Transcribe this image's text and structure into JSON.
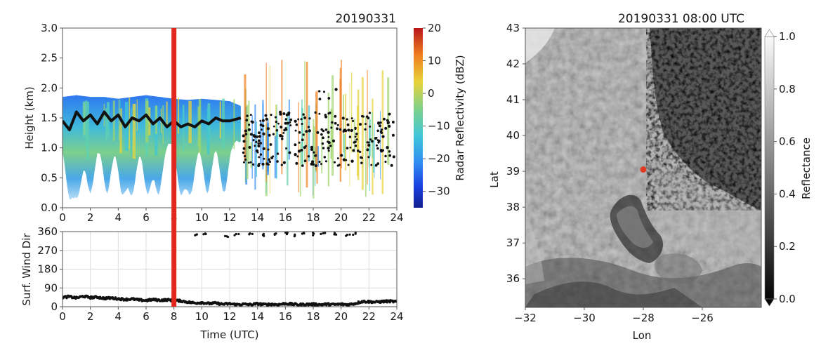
{
  "chart_data": [
    {
      "panel": "radar",
      "type": "heatmap",
      "title": "20190331",
      "xlabel": "",
      "ylabel": "Height (km)",
      "xlim": [
        0,
        24
      ],
      "ylim": [
        0.0,
        3.0
      ],
      "xticks": [
        "0",
        "2",
        "4",
        "6",
        "8",
        "10",
        "12",
        "14",
        "16",
        "18",
        "20",
        "22",
        "24"
      ],
      "yticks": [
        "0.0",
        "0.5",
        "1.0",
        "1.5",
        "2.0",
        "2.5",
        "3.0"
      ],
      "colorbar": {
        "label": "Radar Reflectivity (dBZ)",
        "range": [
          -35,
          20
        ],
        "ticks": [
          "20",
          "10",
          "0",
          "−10",
          "−20",
          "−30"
        ],
        "tick_values": [
          20,
          10,
          0,
          -10,
          -20,
          -30
        ]
      },
      "marker_time": 8,
      "marker_color": "#e0281e",
      "cloud_top_km": [
        [
          0,
          1.85
        ],
        [
          1,
          1.88
        ],
        [
          2,
          1.85
        ],
        [
          3,
          1.85
        ],
        [
          4,
          1.82
        ],
        [
          5,
          1.85
        ],
        [
          6,
          1.88
        ],
        [
          7,
          1.85
        ],
        [
          8,
          1.82
        ],
        [
          9,
          1.8
        ],
        [
          10,
          1.82
        ],
        [
          11,
          1.8
        ],
        [
          12,
          1.78
        ],
        [
          12.8,
          1.7
        ]
      ],
      "cloud_base_black_km": [
        [
          0,
          1.45
        ],
        [
          0.5,
          1.3
        ],
        [
          1,
          1.6
        ],
        [
          1.5,
          1.45
        ],
        [
          2,
          1.55
        ],
        [
          2.5,
          1.4
        ],
        [
          3,
          1.6
        ],
        [
          3.5,
          1.45
        ],
        [
          4,
          1.55
        ],
        [
          4.5,
          1.35
        ],
        [
          5,
          1.5
        ],
        [
          5.5,
          1.45
        ],
        [
          6,
          1.55
        ],
        [
          6.5,
          1.4
        ],
        [
          7,
          1.5
        ],
        [
          7.5,
          1.35
        ],
        [
          8,
          1.45
        ],
        [
          8.5,
          1.35
        ],
        [
          9,
          1.4
        ],
        [
          9.5,
          1.35
        ],
        [
          10,
          1.45
        ],
        [
          10.5,
          1.4
        ],
        [
          11,
          1.5
        ],
        [
          11.5,
          1.45
        ],
        [
          12,
          1.45
        ],
        [
          12.8,
          1.5
        ]
      ]
    },
    {
      "panel": "wind",
      "type": "scatter",
      "title": "",
      "xlabel": "Time (UTC)",
      "ylabel": "Surf. Wind Dir",
      "xlim": [
        0,
        24
      ],
      "ylim": [
        0,
        360
      ],
      "xticks": [
        "0",
        "2",
        "4",
        "6",
        "8",
        "10",
        "12",
        "14",
        "16",
        "18",
        "20",
        "22",
        "24"
      ],
      "yticks": [
        "0",
        "90",
        "180",
        "270",
        "360"
      ],
      "grid": true,
      "marker_time": 8,
      "series": [
        {
          "values": [
            [
              0,
              45
            ],
            [
              0.5,
              48
            ],
            [
              1,
              42
            ],
            [
              1.5,
              50
            ],
            [
              2,
              44
            ],
            [
              2.5,
              46
            ],
            [
              3,
              40
            ],
            [
              3.5,
              42
            ],
            [
              4,
              38
            ],
            [
              4.5,
              35
            ],
            [
              5,
              37
            ],
            [
              5.5,
              32
            ],
            [
              6,
              30
            ],
            [
              6.5,
              34
            ],
            [
              7,
              31
            ],
            [
              7.5,
              33
            ],
            [
              8,
              30
            ],
            [
              8.5,
              28
            ],
            [
              9,
              22
            ],
            [
              9.5,
              18
            ],
            [
              10,
              20
            ],
            [
              10.5,
              15
            ],
            [
              11,
              17
            ],
            [
              11.5,
              12
            ],
            [
              12,
              14
            ],
            [
              12.5,
              10
            ],
            [
              13,
              12
            ],
            [
              13.5,
              10
            ],
            [
              14,
              14
            ],
            [
              14.5,
              10
            ],
            [
              15,
              12
            ],
            [
              15.5,
              10
            ],
            [
              16,
              15
            ],
            [
              16.5,
              12
            ],
            [
              17,
              10
            ],
            [
              17.5,
              11
            ],
            [
              18,
              12
            ],
            [
              18.5,
              10
            ],
            [
              19,
              12
            ],
            [
              19.5,
              10
            ],
            [
              20,
              12
            ],
            [
              20.5,
              10
            ],
            [
              21,
              15
            ],
            [
              21.5,
              25
            ],
            [
              22,
              24
            ],
            [
              22.5,
              22
            ],
            [
              23,
              25
            ],
            [
              23.5,
              26
            ],
            [
              24,
              24
            ]
          ]
        },
        {
          "values": [
            [
              9.5,
              345
            ],
            [
              10.2,
              352
            ],
            [
              11.8,
              340
            ],
            [
              12.5,
              348
            ],
            [
              13.5,
              350
            ],
            [
              14.4,
              345
            ],
            [
              15.2,
              350
            ],
            [
              16.0,
              352
            ],
            [
              16.6,
              343
            ],
            [
              17.3,
              350
            ],
            [
              17.9,
              348
            ],
            [
              18.7,
              352
            ],
            [
              19.6,
              350
            ],
            [
              20.5,
              345
            ],
            [
              20.9,
              350
            ]
          ]
        }
      ]
    },
    {
      "panel": "satellite",
      "type": "heatmap",
      "title": "20190331 08:00 UTC",
      "xlabel": "Lon",
      "ylabel": "Lat",
      "xlim": [
        -32,
        -24
      ],
      "ylim": [
        35.2,
        43
      ],
      "xticks": [
        "−32",
        "−30",
        "−28",
        "−26"
      ],
      "yticks": [
        "36",
        "37",
        "38",
        "39",
        "40",
        "41",
        "42",
        "43"
      ],
      "site_marker": {
        "lon": -28.0,
        "lat": 39.05,
        "color": "#e03a22"
      },
      "colorbar": {
        "label": "Reflectance",
        "range": [
          0.0,
          1.0
        ],
        "ticks": [
          "0.0",
          "0.2",
          "0.4",
          "0.6",
          "0.8",
          "1.0"
        ],
        "tick_values": [
          0.0,
          0.2,
          0.4,
          0.6,
          0.8,
          1.0
        ],
        "extend": "both"
      }
    }
  ]
}
